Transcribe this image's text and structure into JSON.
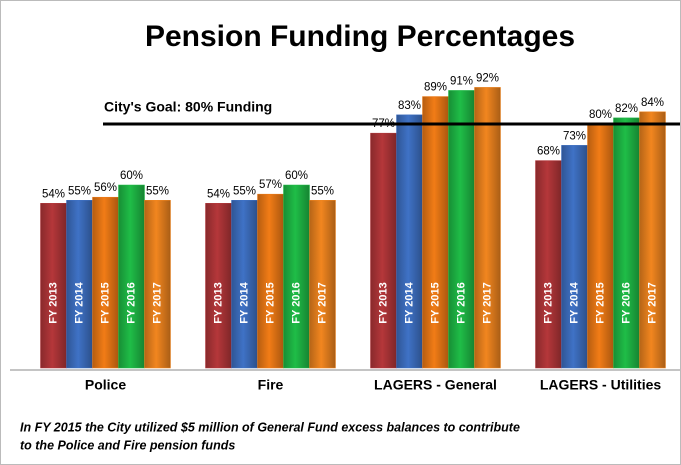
{
  "chart_data": {
    "type": "bar",
    "title": "Pension Funding Percentages",
    "categories": [
      "Police",
      "Fire",
      "LAGERS - General",
      "LAGERS - Utilities"
    ],
    "series": [
      {
        "name": "FY 2013",
        "color": "#b5373a",
        "values": [
          54,
          54,
          77,
          68
        ],
        "value_labels": [
          "54%",
          "54%",
          "77%",
          "68%"
        ]
      },
      {
        "name": "FY 2014",
        "color": "#3f72c6",
        "values": [
          55,
          55,
          83,
          73
        ],
        "value_labels": [
          "55%",
          "55%",
          "83%",
          "73%"
        ]
      },
      {
        "name": "FY 2015",
        "color": "#f27c16",
        "values": [
          56,
          57,
          89,
          80
        ],
        "value_labels": [
          "56%",
          "57%",
          "89%",
          "80%"
        ]
      },
      {
        "name": "FY 2016",
        "color": "#1fbd47",
        "values": [
          60,
          60,
          91,
          82
        ],
        "value_labels": [
          "60%",
          "60%",
          "91%",
          "82%"
        ]
      },
      {
        "name": "FY 2017",
        "color": "#f2861f",
        "values": [
          55,
          55,
          92,
          84
        ],
        "value_labels": [
          "55%",
          "55%",
          "92%",
          "84%"
        ]
      }
    ],
    "goal": {
      "value": 80,
      "label": "City's Goal:  80% Funding"
    },
    "footnote": [
      "In FY 2015  the City utilized $5 million of General Fund excess  balances  to contribute",
      "to the Police and Fire pension funds"
    ]
  }
}
